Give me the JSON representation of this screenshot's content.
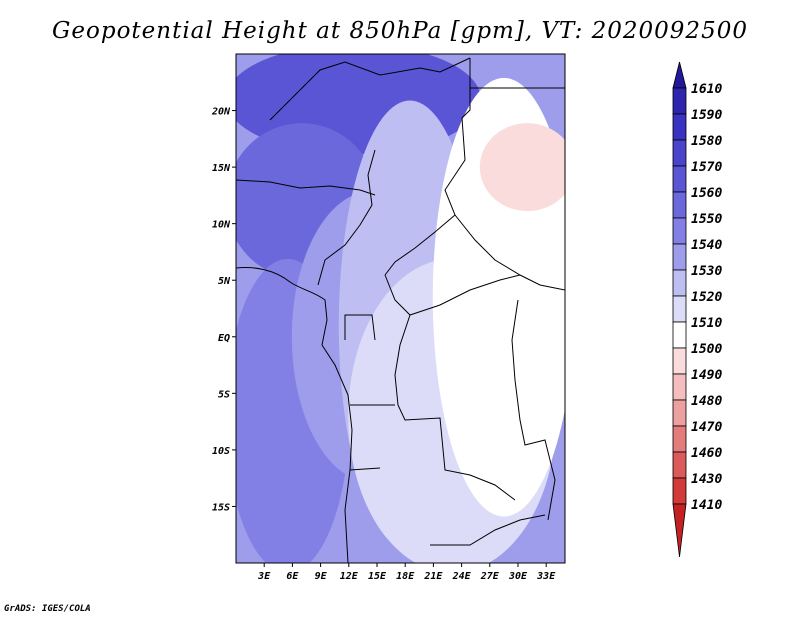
{
  "title": "Geopotential Height at 850hPa [gpm], VT: 2020092500",
  "credit": "GrADS: IGES/COLA",
  "chart_data": {
    "type": "heatmap",
    "title": "Geopotential Height at 850hPa [gpm], VT: 2020092500",
    "variable": "Geopotential Height",
    "level": "850hPa",
    "units": "gpm",
    "valid_time": "2020092500",
    "xlabel": "",
    "ylabel": "",
    "x_range_deg": [
      0,
      35
    ],
    "y_range_deg": [
      -20,
      25
    ],
    "x_ticks": [
      {
        "value": 3,
        "label": "3E"
      },
      {
        "value": 6,
        "label": "6E"
      },
      {
        "value": 9,
        "label": "9E"
      },
      {
        "value": 12,
        "label": "12E"
      },
      {
        "value": 15,
        "label": "15E"
      },
      {
        "value": 18,
        "label": "18E"
      },
      {
        "value": 21,
        "label": "21E"
      },
      {
        "value": 24,
        "label": "24E"
      },
      {
        "value": 27,
        "label": "27E"
      },
      {
        "value": 30,
        "label": "30E"
      },
      {
        "value": 33,
        "label": "33E"
      }
    ],
    "y_ticks": [
      {
        "value": 20,
        "label": "20N"
      },
      {
        "value": 15,
        "label": "15N"
      },
      {
        "value": 10,
        "label": "10N"
      },
      {
        "value": 5,
        "label": "5N"
      },
      {
        "value": 0,
        "label": "EQ"
      },
      {
        "value": -5,
        "label": "5S"
      },
      {
        "value": -10,
        "label": "10S"
      },
      {
        "value": -15,
        "label": "15S"
      }
    ],
    "colorbar": {
      "labels": [
        "1610",
        "1590",
        "1580",
        "1570",
        "1560",
        "1550",
        "1540",
        "1530",
        "1520",
        "1510",
        "1500",
        "1490",
        "1480",
        "1470",
        "1460",
        "1430",
        "1410"
      ],
      "colors": [
        "#21189a",
        "#2d24b0",
        "#3a32c0",
        "#4a43cc",
        "#5a55d4",
        "#6b68dc",
        "#8280e4",
        "#9e9deb",
        "#bebef2",
        "#dcdcf8",
        "#ffffff",
        "#fadcdc",
        "#f4bebe",
        "#eda0a0",
        "#e57c7c",
        "#dd5a5a",
        "#d33a3a",
        "#c42222"
      ]
    },
    "field_regions": [
      {
        "level": 1570,
        "lon": [
          6,
          20
        ],
        "lat": [
          22,
          25
        ]
      },
      {
        "level": 1560,
        "lon": [
          0,
          25
        ],
        "lat": [
          17,
          25
        ]
      },
      {
        "level": 1550,
        "lon": [
          0,
          14
        ],
        "lat": [
          6,
          18
        ]
      },
      {
        "level": 1540,
        "lon": [
          0,
          11
        ],
        "lat": [
          -20,
          6
        ]
      },
      {
        "level": 1530,
        "lon": [
          7,
          22
        ],
        "lat": [
          -12,
          12
        ]
      },
      {
        "level": 1520,
        "lon": [
          12,
          25
        ],
        "lat": [
          -18,
          20
        ]
      },
      {
        "level": 1510,
        "lon": [
          13,
          33
        ],
        "lat": [
          -20,
          6
        ]
      },
      {
        "level": 1500,
        "lon": [
          22,
          35
        ],
        "lat": [
          -15,
          22
        ]
      },
      {
        "level": 1490,
        "lon": [
          27,
          35
        ],
        "lat": [
          12,
          18
        ]
      }
    ]
  }
}
